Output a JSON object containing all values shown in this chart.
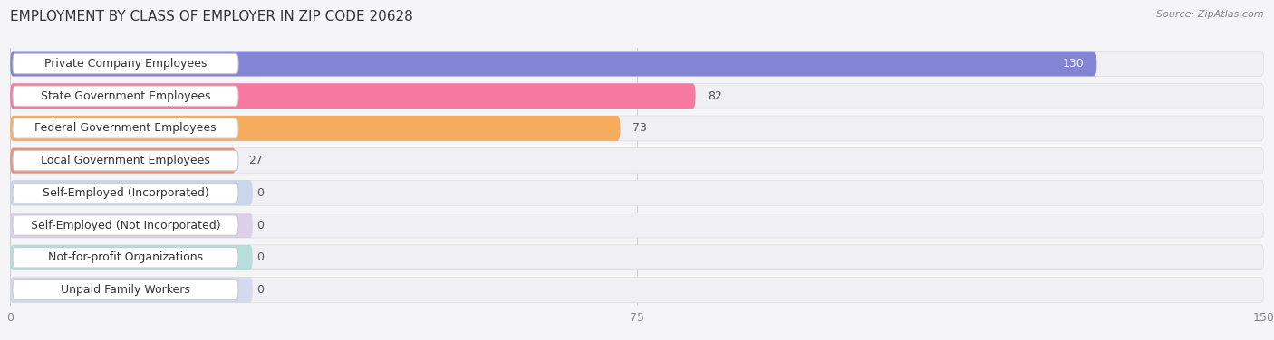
{
  "title": "EMPLOYMENT BY CLASS OF EMPLOYER IN ZIP CODE 20628",
  "source": "Source: ZipAtlas.com",
  "categories": [
    "Private Company Employees",
    "State Government Employees",
    "Federal Government Employees",
    "Local Government Employees",
    "Self-Employed (Incorporated)",
    "Self-Employed (Not Incorporated)",
    "Not-for-profit Organizations",
    "Unpaid Family Workers"
  ],
  "values": [
    130,
    82,
    73,
    27,
    0,
    0,
    0,
    0
  ],
  "bar_colors": [
    "#8484d4",
    "#f778a0",
    "#f5ac5c",
    "#e89080",
    "#90b0e0",
    "#c0a0d8",
    "#60c4bc",
    "#a8b8e8"
  ],
  "bar_bg_colors": [
    "#f0f0f8",
    "#fce8f0",
    "#fef4e8",
    "#fce8e4",
    "#eef2fa",
    "#f4eef8",
    "#e4f6f4",
    "#eef2fa"
  ],
  "xlim": [
    0,
    150
  ],
  "xticks": [
    0,
    75,
    150
  ],
  "background_color": "#ffffff",
  "fig_bg_color": "#f5f5f8",
  "title_fontsize": 11,
  "label_fontsize": 9,
  "value_fontsize": 9
}
